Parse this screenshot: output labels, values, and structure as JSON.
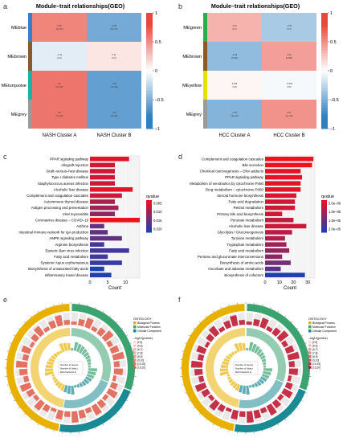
{
  "figure": {
    "panel_labels": [
      "a",
      "b",
      "c",
      "d",
      "e",
      "f"
    ]
  },
  "heatmap_a": {
    "title": "Module–trait relationships(GEO)",
    "rows": [
      "MEblue",
      "MEbrown",
      "MEturquoise",
      "MEgrey"
    ],
    "row_colors": [
      "#3a7dc9",
      "#8b5a2b",
      "#1fb0a8",
      "#9a9a9a"
    ],
    "columns": [
      "NASH Cluster A",
      "NASH Cluster B"
    ],
    "cells": [
      [
        {
          "r": "0.53",
          "p": "(9e–07)",
          "v": 0.53
        },
        {
          "r": "–0.53",
          "p": "(9e–07)",
          "v": -0.53
        }
      ],
      [
        {
          "r": "–0.11",
          "p": "(0.3)",
          "v": -0.11
        },
        {
          "r": "0.11",
          "p": "(0.3)",
          "v": 0.11
        }
      ],
      [
        {
          "r": "0.6",
          "p": "(1e–09)",
          "v": 0.6
        },
        {
          "r": "–0.6",
          "p": "(1e–09)",
          "v": -0.6
        }
      ],
      [
        {
          "r": "0.6",
          "p": "(1e–09)",
          "v": 0.6
        },
        {
          "r": "–0.6",
          "p": "(1e–09)",
          "v": -0.6
        }
      ]
    ],
    "scale_ticks": [
      "1",
      "0.5",
      "0",
      "–0.5",
      "–1"
    ]
  },
  "heatmap_b": {
    "title": "Module–trait relationships(GEO)",
    "rows": [
      "MEgreen",
      "MEbrown",
      "MEyellow",
      "MEgrey"
    ],
    "row_colors": [
      "#22b14c",
      "#8b5a2b",
      "#e8e000",
      "#9a9a9a"
    ],
    "columns": [
      "HCC Cluster A",
      "HCC Cluster B"
    ],
    "cells": [
      [
        {
          "r": "0.33",
          "p": "(0.1)",
          "v": 0.33
        },
        {
          "r": "–0.33",
          "p": "(0.1)",
          "v": -0.33
        }
      ],
      [
        {
          "r": "–0.42",
          "p": "(0.002)",
          "v": -0.42
        },
        {
          "r": "0.42",
          "p": "(0.002)",
          "v": 0.42
        }
      ],
      [
        {
          "r": "0.039",
          "p": "(0.8)",
          "v": 0.039
        },
        {
          "r": "–0.039",
          "p": "(0.8)",
          "v": -0.039
        }
      ],
      [
        {
          "r": "–0.47",
          "p": "(4e–04)",
          "v": -0.47
        },
        {
          "r": "0.47",
          "p": "(4e–04)",
          "v": 0.47
        }
      ]
    ],
    "scale_ticks": [
      "1",
      "0.5",
      "0",
      "–0.5",
      "–1"
    ]
  },
  "chart_data": [
    {
      "type": "bar",
      "orientation": "horizontal",
      "xlabel": "Count",
      "xlim": [
        0,
        14
      ],
      "xticks": [
        "0",
        "5",
        "10"
      ],
      "legend_title": "qvalue",
      "legend_ticks": [
        "0.005",
        "0.010",
        "0.015",
        "0.020"
      ],
      "color_low": "#2040b0",
      "color_high": "#f01020",
      "categories": [
        "PPAR signaling pathway",
        "Allograft rejection",
        "Graft–versus–host disease",
        "Type I diabetes mellitus",
        "Staphylococcus aureus infection",
        "Alcoholic liver disease",
        "Complement and coagulation cascades",
        "Autoimmune thyroid disease",
        "Antigen processing and presentation",
        "Viral myocarditis",
        "Coronavirus disease – COVID–19",
        "Asthma",
        "Intestinal immune network for IgA production",
        "AMPK signaling pathway",
        "Arginine biosynthesis",
        "Epstein–Barr virus infection",
        "Fatty acid metabolism",
        "Systemic lupus erythematosus",
        "Biosynthesis of unsaturated fatty acids",
        "Inflammatory bowel disease"
      ],
      "values": [
        11,
        7,
        7,
        7,
        7,
        12,
        9,
        7,
        8,
        7,
        14,
        4,
        5,
        9,
        4,
        11,
        5,
        9,
        4,
        6
      ],
      "qvalue": [
        0.004,
        0.006,
        0.006,
        0.006,
        0.006,
        0.004,
        0.006,
        0.009,
        0.01,
        0.012,
        0.003,
        0.016,
        0.016,
        0.016,
        0.019,
        0.019,
        0.019,
        0.02,
        0.022,
        0.022
      ]
    },
    {
      "type": "bar",
      "orientation": "horizontal",
      "xlabel": "Count",
      "xlim": [
        0,
        35
      ],
      "xticks": [
        "0",
        "10",
        "20",
        "30"
      ],
      "legend_title": "qvalue",
      "legend_ticks": [
        "5.0e–06",
        "1.0e–05",
        "1.5e–05",
        "2.0e–05"
      ],
      "color_low": "#2040b0",
      "color_high": "#f01020",
      "categories": [
        "Complement and coagulation cascades",
        "Bile secretion",
        "Chemical carcinogenesis – DNA adducts",
        "PPAR signaling pathway",
        "Metabolism of xenobiotics by cytochrome P450",
        "Drug metabolism – cytochrome P450",
        "Steroid hormone biosynthesis",
        "Fatty acid degradation",
        "Retinol metabolism",
        "Primary bile acid biosynthesis",
        "Pyruvate metabolism",
        "Alcoholic liver disease",
        "Glycolysis / Gluconeogenesis",
        "Tyrosine metabolism",
        "Tryptophan metabolism",
        "Fatty acid metabolism",
        "Pentose and glucuronate interconversions",
        "Biosynthesis of amino acids",
        "Ascorbate and aldarate metabolism",
        "Biosynthesis of cofactors"
      ],
      "values": [
        34,
        33,
        25,
        26,
        25,
        25,
        22,
        21,
        21,
        12,
        20,
        29,
        19,
        14,
        15,
        17,
        12,
        18,
        11,
        28
      ],
      "qvalue": [
        1e-06,
        1e-06,
        2e-06,
        2e-06,
        2e-06,
        2e-06,
        3e-06,
        4e-06,
        4e-06,
        4e-06,
        5e-06,
        4e-06,
        6e-06,
        7e-06,
        8e-06,
        9e-06,
        1e-05,
        1.2e-05,
        1.5e-05,
        2e-05
      ]
    }
  ],
  "circos_e": {
    "legend_title": "ONTOLOGY",
    "legend_items": [
      "Biological Process",
      "Molecular Function",
      "Cellular Component"
    ],
    "legend_colors": [
      "#e8b100",
      "#3aa36f",
      "#1a8a94"
    ],
    "legend2_title": "–log10(pvalue)",
    "legend2_items": [
      "[2,5]",
      "(5,6]",
      "(6,7]",
      "(7,8]",
      "(8,9]",
      "(9,10]",
      "(10,15]",
      "(15,20]"
    ],
    "legend3_items": [
      "Number of Genes",
      "Number of Select",
      "Rich Factor(0-1)"
    ]
  },
  "circos_f": {
    "legend_title": "ONTOLOGY",
    "legend_items": [
      "Biological Process",
      "Molecular Function",
      "Cellular Component"
    ],
    "legend_colors": [
      "#e8b100",
      "#3aa36f",
      "#1a8a94"
    ],
    "legend2_title": "–log10(pvalue)",
    "legend2_items": [
      "[2,5]",
      "(5,6]",
      "(6,7]",
      "(7,8]",
      "(8,9]",
      "(9,10]",
      "(10,15]",
      "(15,20]"
    ],
    "legend3_items": [
      "Number of Genes",
      "Number of Select",
      "Rich Factor(0-1)"
    ]
  }
}
